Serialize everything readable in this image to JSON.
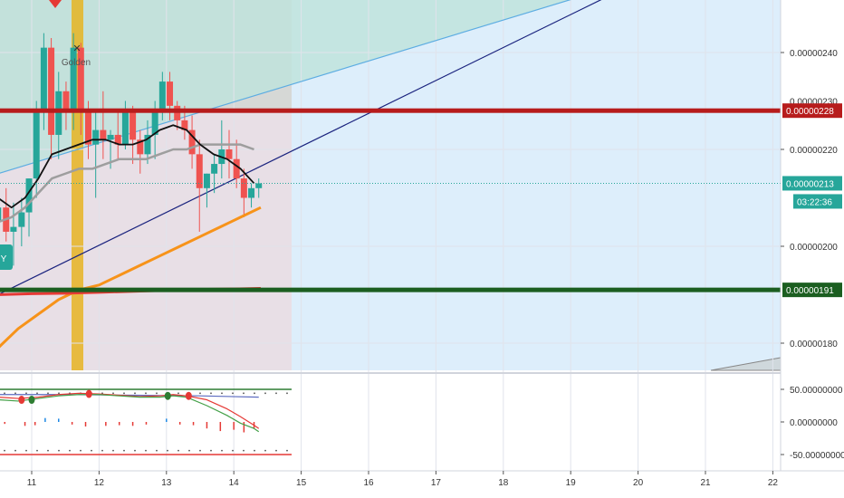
{
  "chart_data": {
    "type": "candlestick",
    "price_axis_ticks": [
      "0.00000240",
      "0.00000220",
      "0.00000200",
      "0.00000180"
    ],
    "price_axis_tick_values": [
      240,
      220,
      200,
      180
    ],
    "time_axis_labels": [
      "11",
      "12",
      "13",
      "14",
      "15",
      "16",
      "17",
      "18",
      "19",
      "20",
      "21",
      "22"
    ],
    "time_axis_values": [
      11,
      12,
      13,
      14,
      15,
      16,
      17,
      18,
      19,
      20,
      21,
      22
    ],
    "oscillator_ticks": [
      "50.00000000",
      "0.00000000",
      "-50.00000000"
    ],
    "oscillator_tick_values": [
      50,
      0,
      -50
    ],
    "resistance": {
      "value": 228,
      "label": "0.00000228",
      "color": "#b71c1c"
    },
    "support": {
      "value": 191,
      "label": "0.00000191",
      "color": "#1b5e20"
    },
    "current_price": {
      "value": 213,
      "label": "0.00000213",
      "countdown": "03:22:36",
      "color": "#26a69a"
    },
    "annotations": {
      "cross_label": "Golden",
      "badge_label": "Y"
    },
    "colors": {
      "up": "#26a69a",
      "down": "#ef5350",
      "ma_black": "#111111",
      "ma_gray": "#9e9e9e",
      "ma_orange": "#f7931a",
      "ma_red": "#e53935",
      "highlight": "#e6b422"
    },
    "candles": [
      {
        "t": 10.5,
        "o": 205,
        "h": 210,
        "l": 198,
        "c": 208
      },
      {
        "t": 10.62,
        "o": 208,
        "h": 212,
        "l": 201,
        "c": 203
      },
      {
        "t": 10.73,
        "o": 203,
        "h": 209,
        "l": 196,
        "c": 204
      },
      {
        "t": 10.85,
        "o": 204,
        "h": 210,
        "l": 200,
        "c": 207
      },
      {
        "t": 10.96,
        "o": 207,
        "h": 214,
        "l": 202,
        "c": 214
      },
      {
        "t": 11.07,
        "o": 214,
        "h": 230,
        "l": 210,
        "c": 228
      },
      {
        "t": 11.18,
        "o": 228,
        "h": 244,
        "l": 224,
        "c": 241
      },
      {
        "t": 11.29,
        "o": 241,
        "h": 243,
        "l": 218,
        "c": 223
      },
      {
        "t": 11.4,
        "o": 223,
        "h": 236,
        "l": 218,
        "c": 232
      },
      {
        "t": 11.51,
        "o": 232,
        "h": 234,
        "l": 224,
        "c": 228
      },
      {
        "t": 11.62,
        "o": 228,
        "h": 244,
        "l": 224,
        "c": 241
      },
      {
        "t": 11.73,
        "o": 241,
        "h": 242,
        "l": 223,
        "c": 228
      },
      {
        "t": 11.84,
        "o": 228,
        "h": 230,
        "l": 218,
        "c": 221
      },
      {
        "t": 11.95,
        "o": 221,
        "h": 228,
        "l": 210,
        "c": 224
      },
      {
        "t": 12.06,
        "o": 224,
        "h": 232,
        "l": 218,
        "c": 222
      },
      {
        "t": 12.17,
        "o": 222,
        "h": 224,
        "l": 216,
        "c": 223
      },
      {
        "t": 12.28,
        "o": 223,
        "h": 228,
        "l": 218,
        "c": 221
      },
      {
        "t": 12.39,
        "o": 221,
        "h": 230,
        "l": 220,
        "c": 228
      },
      {
        "t": 12.5,
        "o": 228,
        "h": 229,
        "l": 217,
        "c": 222
      },
      {
        "t": 12.61,
        "o": 222,
        "h": 224,
        "l": 215,
        "c": 219
      },
      {
        "t": 12.72,
        "o": 219,
        "h": 226,
        "l": 217,
        "c": 223
      },
      {
        "t": 12.83,
        "o": 223,
        "h": 230,
        "l": 218,
        "c": 228
      },
      {
        "t": 12.94,
        "o": 228,
        "h": 236,
        "l": 226,
        "c": 234
      },
      {
        "t": 13.05,
        "o": 234,
        "h": 236,
        "l": 226,
        "c": 229
      },
      {
        "t": 13.16,
        "o": 229,
        "h": 230,
        "l": 224,
        "c": 226
      },
      {
        "t": 13.27,
        "o": 226,
        "h": 229,
        "l": 222,
        "c": 224
      },
      {
        "t": 13.38,
        "o": 224,
        "h": 227,
        "l": 216,
        "c": 219
      },
      {
        "t": 13.49,
        "o": 219,
        "h": 222,
        "l": 203,
        "c": 212
      },
      {
        "t": 13.6,
        "o": 212,
        "h": 215,
        "l": 208,
        "c": 215
      },
      {
        "t": 13.71,
        "o": 215,
        "h": 219,
        "l": 211,
        "c": 217
      },
      {
        "t": 13.82,
        "o": 217,
        "h": 226,
        "l": 214,
        "c": 220
      },
      {
        "t": 13.93,
        "o": 220,
        "h": 224,
        "l": 214,
        "c": 218
      },
      {
        "t": 14.04,
        "o": 218,
        "h": 222,
        "l": 212,
        "c": 214
      },
      {
        "t": 14.15,
        "o": 214,
        "h": 216,
        "l": 206,
        "c": 210
      },
      {
        "t": 14.26,
        "o": 210,
        "h": 213,
        "l": 208,
        "c": 212
      },
      {
        "t": 14.37,
        "o": 212,
        "h": 214,
        "l": 210,
        "c": 213
      }
    ],
    "ma_black": [
      [
        10.5,
        210
      ],
      [
        10.7,
        208
      ],
      [
        10.9,
        210
      ],
      [
        11.1,
        214
      ],
      [
        11.3,
        219
      ],
      [
        11.5,
        220
      ],
      [
        11.7,
        221
      ],
      [
        11.9,
        222
      ],
      [
        12.1,
        222
      ],
      [
        12.3,
        221
      ],
      [
        12.5,
        221
      ],
      [
        12.7,
        222
      ],
      [
        12.9,
        224
      ],
      [
        13.1,
        225
      ],
      [
        13.3,
        224
      ],
      [
        13.5,
        221
      ],
      [
        13.7,
        219
      ],
      [
        13.9,
        218
      ],
      [
        14.1,
        216
      ],
      [
        14.3,
        213
      ]
    ],
    "ma_gray": [
      [
        10.5,
        205
      ],
      [
        10.7,
        206
      ],
      [
        10.9,
        208
      ],
      [
        11.1,
        211
      ],
      [
        11.3,
        214
      ],
      [
        11.5,
        215
      ],
      [
        11.7,
        216
      ],
      [
        11.9,
        216
      ],
      [
        12.1,
        217
      ],
      [
        12.3,
        218
      ],
      [
        12.5,
        218
      ],
      [
        12.7,
        218
      ],
      [
        12.9,
        219
      ],
      [
        13.1,
        220
      ],
      [
        13.3,
        220
      ],
      [
        13.5,
        221
      ],
      [
        13.7,
        221
      ],
      [
        13.9,
        221
      ],
      [
        14.1,
        221
      ],
      [
        14.3,
        220
      ]
    ],
    "ma_orange": [
      [
        10.5,
        179
      ],
      [
        10.8,
        183
      ],
      [
        11.1,
        186
      ],
      [
        11.4,
        189
      ],
      [
        11.7,
        191
      ],
      [
        12.0,
        192
      ],
      [
        12.3,
        194
      ],
      [
        12.6,
        196
      ],
      [
        12.9,
        198
      ],
      [
        13.2,
        200
      ],
      [
        13.5,
        202
      ],
      [
        13.8,
        204
      ],
      [
        14.1,
        206
      ],
      [
        14.4,
        208
      ]
    ],
    "ma_red": [
      [
        10.5,
        190
      ],
      [
        11.0,
        190.2
      ],
      [
        11.5,
        190.3
      ],
      [
        12.0,
        190.5
      ],
      [
        12.5,
        190.7
      ],
      [
        13.0,
        190.9
      ],
      [
        13.5,
        191.1
      ],
      [
        14.0,
        191.2
      ],
      [
        14.4,
        191.3
      ]
    ],
    "trend_lines": [
      {
        "name": "lower-trend-line",
        "from": [
          10.5,
          190
        ],
        "to": [
          20.2,
          256
        ],
        "color": "#1a237e"
      },
      {
        "name": "upper-channel-line",
        "from": [
          10.5,
          215
        ],
        "to": [
          20.2,
          256
        ],
        "color": "#5dade2"
      }
    ],
    "osc_line_a": [
      [
        10.5,
        38
      ],
      [
        10.8,
        36
      ],
      [
        11.1,
        38
      ],
      [
        11.4,
        42
      ],
      [
        11.7,
        44
      ],
      [
        12.0,
        43
      ],
      [
        12.3,
        41
      ],
      [
        12.6,
        39
      ],
      [
        12.9,
        40
      ],
      [
        13.1,
        42
      ],
      [
        13.3,
        40
      ],
      [
        13.6,
        34
      ],
      [
        13.9,
        20
      ],
      [
        14.1,
        8
      ],
      [
        14.3,
        -5
      ],
      [
        14.37,
        -10
      ]
    ],
    "osc_line_b": [
      [
        10.5,
        34
      ],
      [
        10.8,
        32
      ],
      [
        11.1,
        36
      ],
      [
        11.4,
        40
      ],
      [
        11.7,
        42
      ],
      [
        12.0,
        42
      ],
      [
        12.3,
        40
      ],
      [
        12.6,
        38
      ],
      [
        12.9,
        38
      ],
      [
        13.1,
        40
      ],
      [
        13.3,
        38
      ],
      [
        13.6,
        25
      ],
      [
        13.9,
        10
      ],
      [
        14.1,
        -2
      ],
      [
        14.3,
        -10
      ],
      [
        14.37,
        -15
      ]
    ],
    "osc_line_c": [
      [
        10.5,
        42
      ],
      [
        11.5,
        42
      ],
      [
        12.5,
        41
      ],
      [
        13.5,
        40
      ],
      [
        14.37,
        38
      ]
    ],
    "osc_dots": [
      {
        "t": 10.85,
        "v": 34,
        "color": "#e53935"
      },
      {
        "t": 11.0,
        "v": 34,
        "color": "#2e7d32"
      },
      {
        "t": 11.85,
        "v": 43,
        "color": "#e53935"
      },
      {
        "t": 13.02,
        "v": 40,
        "color": "#2e7d32"
      },
      {
        "t": 13.33,
        "v": 40,
        "color": "#e53935"
      }
    ],
    "osc_hist": [
      {
        "t": 10.6,
        "v": -3
      },
      {
        "t": 10.9,
        "v": -6
      },
      {
        "t": 11.05,
        "v": -5
      },
      {
        "t": 11.2,
        "v": 6
      },
      {
        "t": 11.4,
        "v": 5
      },
      {
        "t": 11.6,
        "v": -4
      },
      {
        "t": 11.8,
        "v": -7
      },
      {
        "t": 12.1,
        "v": -6
      },
      {
        "t": 12.3,
        "v": -5
      },
      {
        "t": 12.5,
        "v": -6
      },
      {
        "t": 12.7,
        "v": -4
      },
      {
        "t": 13.0,
        "v": 5
      },
      {
        "t": 13.2,
        "v": -4
      },
      {
        "t": 13.4,
        "v": -5
      },
      {
        "t": 13.6,
        "v": -10
      },
      {
        "t": 13.8,
        "v": -14
      },
      {
        "t": 14.0,
        "v": -12
      },
      {
        "t": 14.15,
        "v": -16
      },
      {
        "t": 14.3,
        "v": -10
      }
    ]
  }
}
